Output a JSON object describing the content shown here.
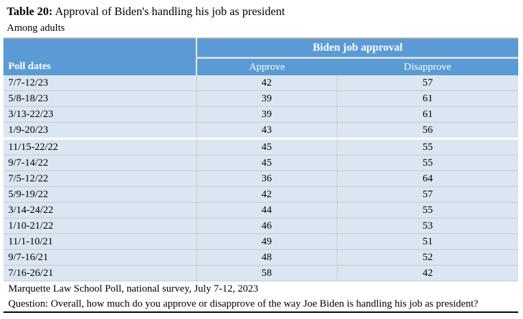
{
  "title": {
    "prefix": "Table 20:",
    "text": " Approval of Biden's handling his job as president"
  },
  "subtitle": "Among adults",
  "table": {
    "group_header": "Biden job approval",
    "col_headers": {
      "dates": "Poll dates",
      "approve": "Approve",
      "disapprove": "Disapprove"
    },
    "rows": [
      {
        "dates": "7/7-12/23",
        "approve": "42",
        "disapprove": "57"
      },
      {
        "dates": "5/8-18/23",
        "approve": "39",
        "disapprove": "61"
      },
      {
        "dates": "3/13-22/23",
        "approve": "39",
        "disapprove": "61"
      },
      {
        "dates": "1/9-20/23",
        "approve": "43",
        "disapprove": "56"
      },
      {
        "dates": "11/15-22/22",
        "approve": "45",
        "disapprove": "55"
      },
      {
        "dates": "9/7-14/22",
        "approve": "45",
        "disapprove": "55"
      },
      {
        "dates": "7/5-12/22",
        "approve": "36",
        "disapprove": "64"
      },
      {
        "dates": "5/9-19/22",
        "approve": "42",
        "disapprove": "57"
      },
      {
        "dates": "3/14-24/22",
        "approve": "44",
        "disapprove": "55"
      },
      {
        "dates": "1/10-21/22",
        "approve": "46",
        "disapprove": "53"
      },
      {
        "dates": "11/1-10/21",
        "approve": "49",
        "disapprove": "51"
      },
      {
        "dates": "9/7-16/21",
        "approve": "48",
        "disapprove": "52"
      },
      {
        "dates": "7/16-26/21",
        "approve": "58",
        "disapprove": "42"
      }
    ],
    "colors": {
      "header_bg": "#5b9bd5",
      "row_bg": "#dce6f2"
    }
  },
  "footer": {
    "source": "Marquette Law School Poll, national survey, July 7-12, 2023",
    "question": "Question: Overall, how much do you approve or disapprove of the way Joe Biden is handling his job as president?"
  }
}
